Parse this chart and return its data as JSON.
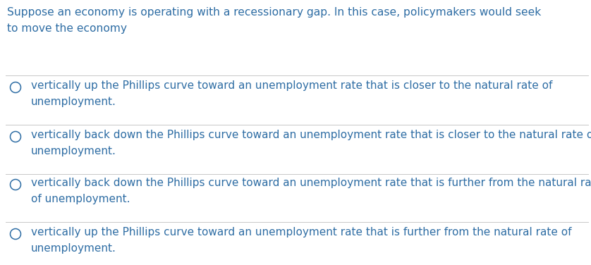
{
  "background_color": "#ffffff",
  "text_color": "#2e6da4",
  "line_color": "#c8c8c8",
  "question_line1": "Suppose an economy is operating with a recessionary gap. In this case, policymakers would seek",
  "question_line2": "to move the economy",
  "options": [
    "vertically up the Phillips curve toward an unemployment rate that is closer to the natural rate of\nunemployment.",
    "vertically back down the Phillips curve toward an unemployment rate that is closer to the natural rate of\nunemployment.",
    "vertically back down the Phillips curve toward an unemployment rate that is further from the natural rate\nof unemployment.",
    "vertically up the Phillips curve toward an unemployment rate that is further from the natural rate of\nunemployment."
  ],
  "question_fontsize": 11.2,
  "option_fontsize": 11.0,
  "fig_width": 8.38,
  "fig_height": 3.76,
  "dpi": 100
}
